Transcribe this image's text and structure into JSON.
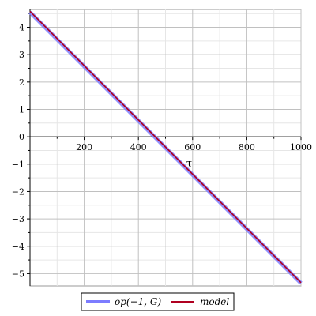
{
  "chart_data": {
    "type": "line",
    "title": "",
    "xlabel": "τ",
    "ylabel": "",
    "xlim": [
      0,
      1000
    ],
    "ylim": [
      -5.45,
      4.65
    ],
    "x_ticks": [
      200,
      400,
      600,
      800,
      1000
    ],
    "y_ticks": [
      -5,
      -4,
      -3,
      -2,
      -1,
      0,
      1,
      2,
      3,
      4
    ],
    "grid": true,
    "legend_position": "bottom",
    "series": [
      {
        "name": "op(−1, G)",
        "color": "#7c7cff",
        "x": [
          0,
          1000
        ],
        "y": [
          4.55,
          -5.35
        ]
      },
      {
        "name": "model",
        "color": "#b00020",
        "x": [
          0,
          1000
        ],
        "y": [
          4.58,
          -5.33
        ]
      }
    ]
  }
}
